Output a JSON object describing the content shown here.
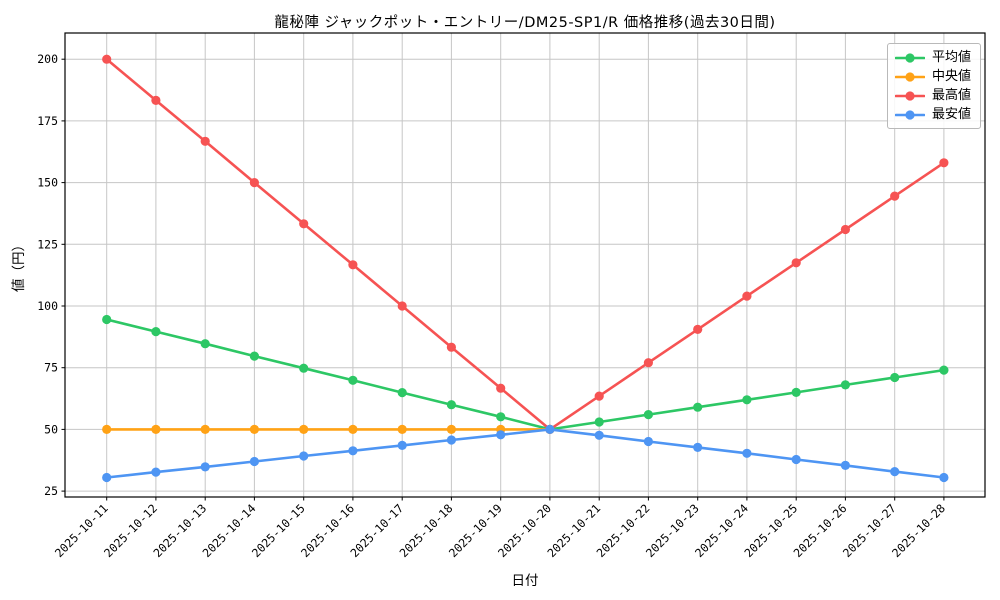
{
  "chart_data": {
    "type": "line",
    "title": "龍秘陣 ジャックポット・エントリー/DM25-SP1/R 価格推移(過去30日間)",
    "xlabel": "日付",
    "ylabel": "値（円）",
    "categories": [
      "2025-10-11",
      "2025-10-12",
      "2025-10-13",
      "2025-10-14",
      "2025-10-15",
      "2025-10-16",
      "2025-10-17",
      "2025-10-18",
      "2025-10-19",
      "2025-10-20",
      "2025-10-21",
      "2025-10-22",
      "2025-10-23",
      "2025-10-24",
      "2025-10-25",
      "2025-10-26",
      "2025-10-27",
      "2025-10-28"
    ],
    "series": [
      {
        "key": "average",
        "name": "平均値",
        "color": "#2dc765",
        "values": [
          94.5,
          89.6,
          84.7,
          79.7,
          74.8,
          69.9,
          64.9,
          60,
          55.1,
          50,
          53,
          56,
          59,
          62,
          65,
          68,
          71,
          74
        ]
      },
      {
        "key": "median",
        "name": "中央値",
        "color": "#ffa216",
        "values": [
          50,
          50,
          50,
          50,
          50,
          50,
          50,
          50,
          50,
          50,
          null,
          null,
          null,
          null,
          null,
          null,
          null,
          null
        ]
      },
      {
        "key": "max",
        "name": "最高値",
        "color": "#f65353",
        "values": [
          200,
          183.3,
          166.7,
          150,
          133.3,
          116.7,
          100,
          83.3,
          66.7,
          50,
          63.5,
          77,
          90.5,
          104,
          117.5,
          131,
          144.5,
          158
        ]
      },
      {
        "key": "min",
        "name": "最安値",
        "color": "#4e95f3",
        "values": [
          30.5,
          32.7,
          34.8,
          37,
          39.2,
          41.3,
          43.5,
          45.7,
          47.8,
          50,
          47.6,
          45.1,
          42.7,
          40.3,
          37.8,
          35.4,
          32.9,
          30.5
        ]
      }
    ],
    "yticks": [
      25,
      50,
      75,
      100,
      125,
      150,
      175,
      200
    ],
    "ylim": [
      22.6,
      210.6
    ],
    "grid": true,
    "legend_position": "upper-right"
  },
  "style": {
    "grid_color": "#c6c6c6",
    "spine_color": "#000000",
    "background": "#ffffff",
    "text_color": "#000000"
  }
}
